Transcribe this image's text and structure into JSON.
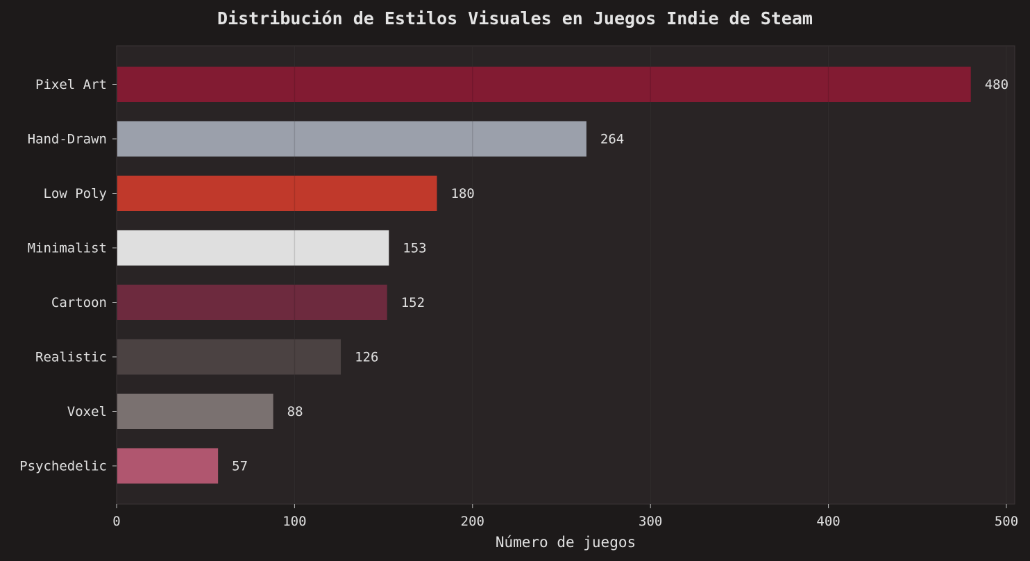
{
  "chart_data": {
    "type": "bar",
    "orientation": "horizontal",
    "title": "Distribución de Estilos Visuales en Juegos Indie de Steam",
    "xlabel": "Número de juegos",
    "ylabel": "",
    "categories": [
      "Pixel Art",
      "Hand-Drawn",
      "Low Poly",
      "Minimalist",
      "Cartoon",
      "Realistic",
      "Voxel",
      "Psychedelic"
    ],
    "values": [
      480,
      264,
      180,
      153,
      152,
      126,
      88,
      57
    ],
    "colors": [
      "#821b32",
      "#9ba0ab",
      "#c0392b",
      "#dfdfdf",
      "#6d2a3e",
      "#4b4242",
      "#7a7170",
      "#b0566f"
    ],
    "xlim": [
      0,
      500
    ],
    "xticks": [
      "0",
      "100",
      "200",
      "300",
      "400",
      "500"
    ],
    "grid": true,
    "legend": "none",
    "background": "#1d1a1a",
    "plot_background": "#292425"
  }
}
